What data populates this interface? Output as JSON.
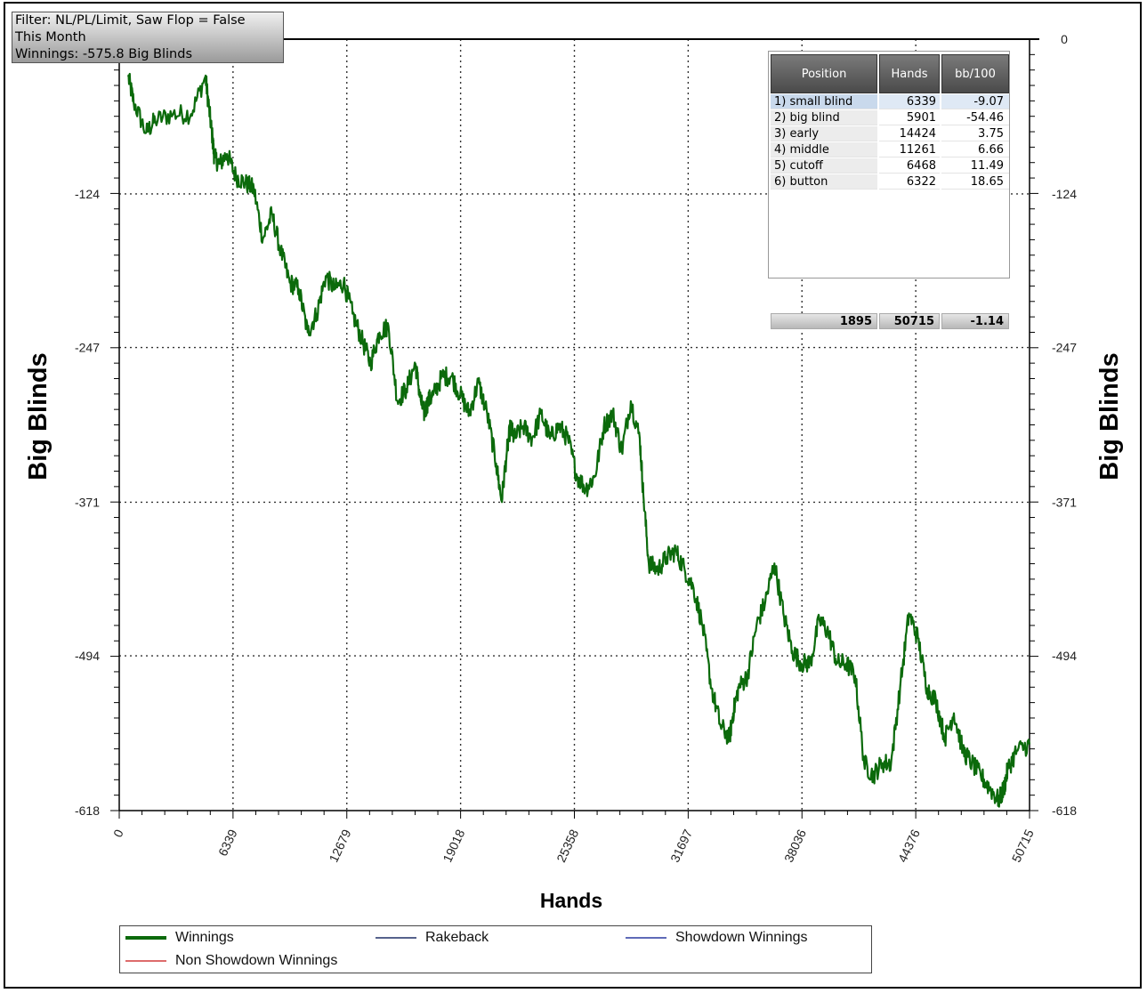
{
  "filter_box": {
    "line1": "Filter: NL/PL/Limit, Saw Flop = False",
    "line2": "This Month",
    "line3": "Winnings: -575.8 Big Blinds"
  },
  "table": {
    "headers": [
      "Position",
      "Hands",
      "bb/100"
    ],
    "rows": [
      {
        "position": "1) small blind",
        "hands": "6339",
        "bb100": "-9.07"
      },
      {
        "position": "2) big blind",
        "hands": "5901",
        "bb100": "-54.46"
      },
      {
        "position": "3) early",
        "hands": "14424",
        "bb100": "3.75"
      },
      {
        "position": "4) middle",
        "hands": "11261",
        "bb100": "6.66"
      },
      {
        "position": "5) cutoff",
        "hands": "6468",
        "bb100": "11.49"
      },
      {
        "position": "6) button",
        "hands": "6322",
        "bb100": "18.65"
      }
    ],
    "totals": {
      "position": "1895",
      "hands": "50715",
      "bb100": "-1.14"
    }
  },
  "legend": {
    "items": [
      {
        "label": "Winnings",
        "color": "#0b6a0b"
      },
      {
        "label": "Rakeback",
        "color": "#1f2f66"
      },
      {
        "label": "Showdown Winnings",
        "color": "#2a3aa0"
      },
      {
        "label": "Non Showdown Winnings",
        "color": "#d23a3a"
      }
    ]
  },
  "chart_data": {
    "type": "line",
    "xlabel": "Hands",
    "ylabel": "Big Blinds",
    "xlim": [
      0,
      50715
    ],
    "ylim": [
      -618,
      0
    ],
    "x_ticks": [
      "0",
      "6339",
      "12679",
      "19018",
      "25358",
      "31697",
      "38036",
      "44376",
      "50715"
    ],
    "y_ticks": [
      "0",
      "-124",
      "-247",
      "-371",
      "-494",
      "-618"
    ],
    "grid": true,
    "line_color": "#0b6a0b",
    "series": [
      {
        "name": "Winnings",
        "x": [
          500,
          800,
          1500,
          2000,
          3000,
          4000,
          4800,
          5000,
          5200,
          5300,
          5600,
          6000,
          6500,
          7000,
          7500,
          8000,
          8500,
          9000,
          9500,
          10000,
          10500,
          11000,
          11500,
          12000,
          12500,
          13000,
          13500,
          14000,
          14500,
          15000,
          15500,
          16000,
          16500,
          16800,
          17000,
          17200,
          17500,
          18000,
          18500,
          19000,
          19500,
          20000,
          20500,
          21000,
          21300,
          21600,
          21800,
          22000,
          22500,
          23000,
          23500,
          24000,
          24500,
          25000,
          25500,
          26000,
          26500,
          27000,
          27500,
          28000,
          28500,
          29000,
          29200,
          29500,
          30000,
          30500,
          31000,
          31500,
          32000,
          32500,
          33000,
          33500,
          34000,
          34200,
          34500,
          35000,
          35500,
          36000,
          36500,
          37000,
          37500,
          38000,
          38500,
          39000,
          39500,
          40000,
          40500,
          41000,
          41500,
          42000,
          42500,
          43000,
          43500,
          44000,
          44500,
          45000,
          45500,
          46000,
          46500,
          47000,
          47500,
          48000,
          48500,
          49000,
          49300,
          49500,
          50000,
          50715
        ],
        "y": [
          -30,
          -50,
          -75,
          -65,
          -60,
          -60,
          -30,
          -55,
          -80,
          -95,
          -100,
          -92,
          -110,
          -115,
          -120,
          -160,
          -140,
          -170,
          -195,
          -200,
          -235,
          -220,
          -190,
          -200,
          -195,
          -220,
          -240,
          -260,
          -235,
          -230,
          -290,
          -280,
          -260,
          -290,
          -300,
          -290,
          -285,
          -270,
          -270,
          -285,
          -300,
          -275,
          -300,
          -340,
          -370,
          -330,
          -310,
          -320,
          -310,
          -320,
          -300,
          -320,
          -310,
          -320,
          -350,
          -360,
          -350,
          -310,
          -300,
          -330,
          -290,
          -320,
          -365,
          -420,
          -425,
          -415,
          -410,
          -425,
          -440,
          -470,
          -520,
          -550,
          -560,
          -540,
          -520,
          -510,
          -470,
          -450,
          -420,
          -460,
          -490,
          -500,
          -500,
          -465,
          -475,
          -500,
          -500,
          -510,
          -580,
          -590,
          -580,
          -580,
          -520,
          -460,
          -480,
          -520,
          -530,
          -560,
          -540,
          -570,
          -580,
          -590,
          -600,
          -610,
          -600,
          -585,
          -570,
          -565
        ]
      },
      {
        "name": "Rakeback",
        "x": [],
        "y": []
      },
      {
        "name": "Showdown Winnings",
        "x": [],
        "y": []
      },
      {
        "name": "Non Showdown Winnings",
        "x": [],
        "y": []
      }
    ]
  }
}
